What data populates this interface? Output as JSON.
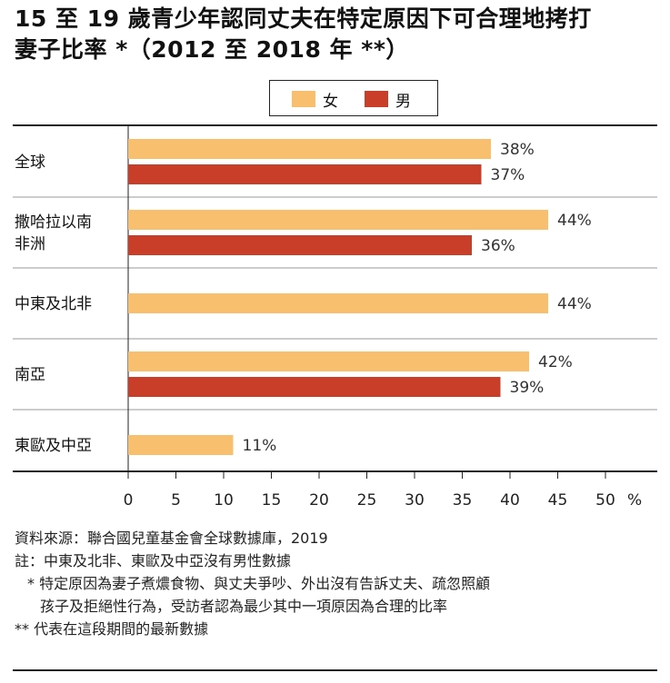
{
  "title_line1": "15 至 19 歲青少年認同丈夫在特定原因下可合理地拷打",
  "title_line2": "妻子比率 *（2012 至 2018 年 **）",
  "legend": [
    {
      "label": "女",
      "color": "#f7bf6e"
    },
    {
      "label": "男",
      "color": "#c83e28"
    }
  ],
  "chart_data": {
    "type": "bar",
    "orientation": "horizontal",
    "categories": [
      [
        "全球"
      ],
      [
        "撒哈拉以南",
        "非洲"
      ],
      [
        "中東及北非"
      ],
      [
        "南亞"
      ],
      [
        "東歐及中亞"
      ]
    ],
    "series": [
      {
        "name": "女",
        "color": "#f7bf6e",
        "values": [
          38,
          44,
          44,
          42,
          11
        ]
      },
      {
        "name": "男",
        "color": "#c83e28",
        "values": [
          37,
          36,
          null,
          39,
          null
        ]
      }
    ],
    "value_labels_suffix": "%",
    "xlim": [
      0,
      50
    ],
    "xticks": [
      "0",
      "5",
      "10",
      "15",
      "20",
      "25",
      "30",
      "35",
      "40",
      "45",
      "50"
    ],
    "xunit": "%",
    "grid": false,
    "legend_position": "top-center"
  },
  "notes": {
    "source": "資料來源：聯合國兒童基金會全球數據庫，2019",
    "note": "註：中東及北非、東歐及中亞沒有男性數據",
    "star1_a": "* 特定原因為妻子煮燶食物、與丈夫爭吵、外出沒有告訴丈夫、疏忽照顧",
    "star1_b": "孩子及拒絕性行為，受訪者認為最少其中一項原因為合理的比率",
    "star2": "** 代表在這段期間的最新數據"
  }
}
